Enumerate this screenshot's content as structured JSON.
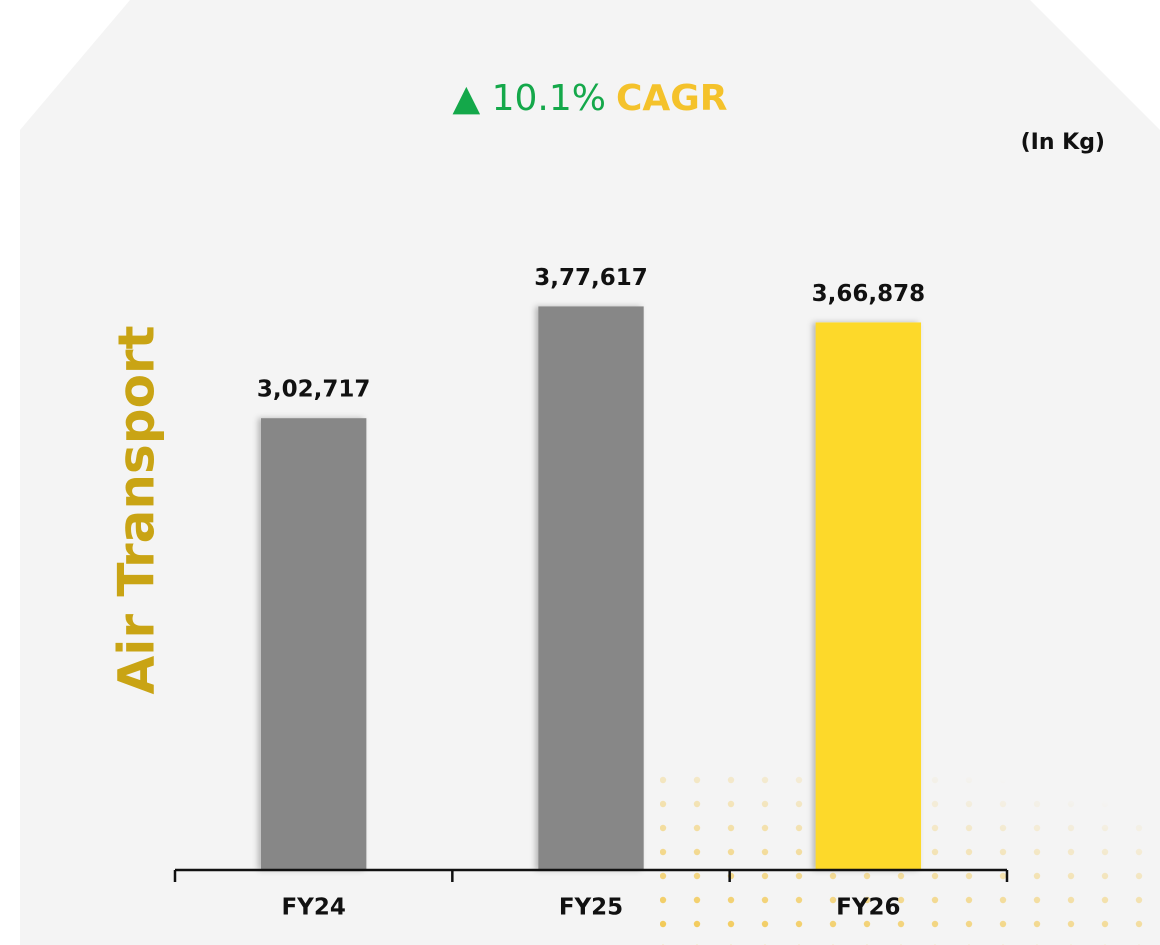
{
  "chart_data": {
    "type": "bar",
    "title": {
      "growth": "▲ 10.1%",
      "label": "CAGR"
    },
    "unit_label": "(In Kg)",
    "ylabel": "Air Transport",
    "categories": [
      "FY24",
      "FY25",
      "FY26"
    ],
    "values": [
      302717,
      377617,
      366878
    ],
    "value_labels": [
      "3,02,717",
      "3,77,617",
      "3,66,878"
    ],
    "colors": [
      "#878787",
      "#878787",
      "#fdd92a"
    ],
    "ylim": [
      0,
      400000
    ]
  }
}
